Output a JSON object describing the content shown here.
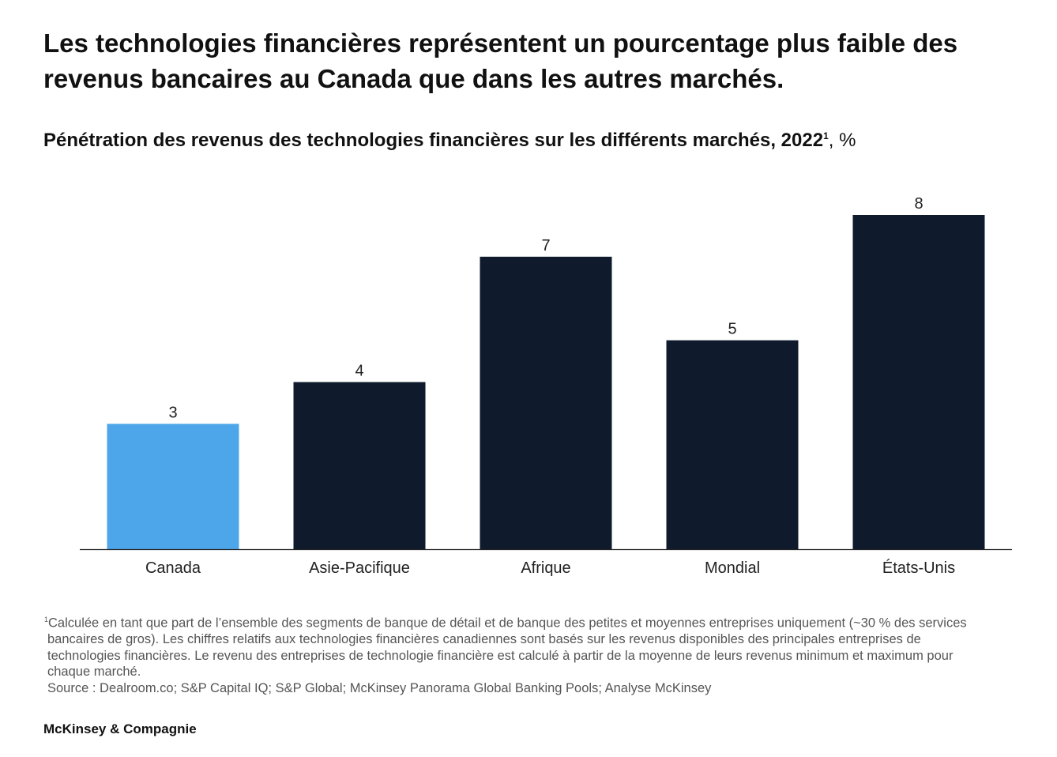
{
  "title": "Les technologies financières représentent un pourcentage plus faible des revenus bancaires au Canada que dans les autres marchés.",
  "subtitle": {
    "text": "Pénétration des revenus des technologies financières sur les différents marchés, 2022",
    "footnote_mark": "1",
    "unit": ", %"
  },
  "chart_data": {
    "type": "bar",
    "categories": [
      "Canada",
      "Asie-Pacifique",
      "Afrique",
      "Mondial",
      "États-Unis"
    ],
    "values": [
      3,
      4,
      7,
      5,
      8
    ],
    "colors": [
      "#4da6ea",
      "#0f1b2d",
      "#0f1b2d",
      "#0f1b2d",
      "#0f1b2d"
    ],
    "ylim": [
      0,
      8
    ],
    "grid": false
  },
  "footnotes": {
    "mark": "1",
    "lines": [
      "Calculée en tant que part de l’ensemble des segments de banque de détail et de banque des petites et moyennes entreprises uniquement (~30 % des services",
      "bancaires de gros). Les chiffres relatifs aux technologies financières canadiennes sont basés sur les revenus disponibles des principales entreprises de",
      "technologies financières. Le revenu des entreprises de technologie financière est calculé à partir de la moyenne de leurs revenus minimum et maximum pour",
      "chaque marché."
    ],
    "source": "Source : Dealroom.co; S&P Capital IQ; S&P Global; McKinsey Panorama Global Banking Pools; Analyse McKinsey"
  },
  "brand": "McKinsey & Compagnie"
}
